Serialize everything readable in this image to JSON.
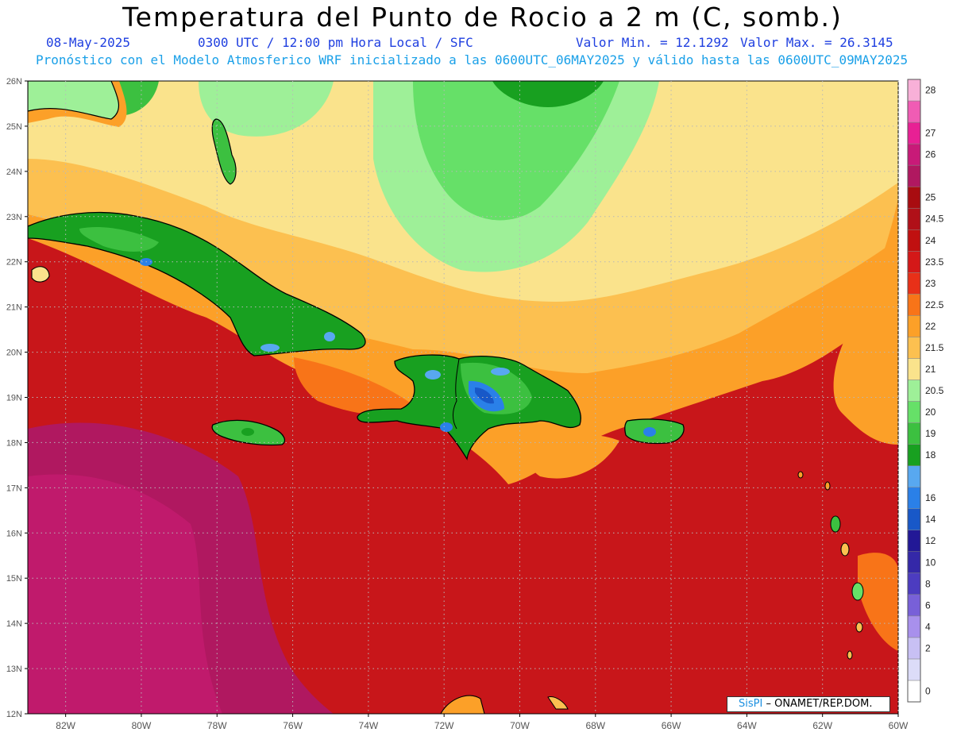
{
  "title": "Temperatura del Punto de Rocio a 2 m (C, somb.)",
  "subtitle": {
    "date": "08-May-2025",
    "time": "0300 UTC / 12:00 pm Hora Local / SFC",
    "min": "Valor Min. = 12.1292",
    "max": "Valor Max. = 26.3145"
  },
  "model_info": "Pronóstico con el Modelo Atmosferico WRF inicializado a las 0600UTC_06MAY2025 y válido hasta las  0600UTC_09MAY2025",
  "credit": {
    "brand": "SisPI",
    "text": "– ONAMET/REP.DOM."
  },
  "map": {
    "lon_range": [
      -83,
      -60
    ],
    "lat_range": [
      12,
      26
    ],
    "lon_ticks": [
      "82W",
      "80W",
      "78W",
      "76W",
      "74W",
      "72W",
      "70W",
      "68W",
      "66W",
      "64W",
      "62W",
      "60W"
    ],
    "lat_ticks": [
      "12N",
      "13N",
      "14N",
      "15N",
      "16N",
      "17N",
      "18N",
      "19N",
      "20N",
      "21N",
      "22N",
      "23N",
      "24N",
      "25N",
      "26N"
    ],
    "grid": true
  },
  "colorbar": {
    "levels": [
      {
        "label": "0",
        "color": "#ffffff"
      },
      {
        "label": "",
        "color": "#dcdcf8"
      },
      {
        "label": "2",
        "color": "#c8c0f4"
      },
      {
        "label": "4",
        "color": "#a890ec"
      },
      {
        "label": "6",
        "color": "#7860d8"
      },
      {
        "label": "8",
        "color": "#4c3cc0"
      },
      {
        "label": "10",
        "color": "#3428a8"
      },
      {
        "label": "12",
        "color": "#221896"
      },
      {
        "label": "14",
        "color": "#1858c8"
      },
      {
        "label": "16",
        "color": "#2a80e8"
      },
      {
        "label": "",
        "color": "#58a8f0"
      },
      {
        "label": "18",
        "color": "#18a020"
      },
      {
        "label": "19",
        "color": "#3cc040"
      },
      {
        "label": "20",
        "color": "#66e068"
      },
      {
        "label": "20.5",
        "color": "#9ef098"
      },
      {
        "label": "21",
        "color": "#fae38c"
      },
      {
        "label": "21.5",
        "color": "#fcc050"
      },
      {
        "label": "22",
        "color": "#fca028"
      },
      {
        "label": "22.5",
        "color": "#f87418"
      },
      {
        "label": "23",
        "color": "#e83018"
      },
      {
        "label": "23.5",
        "color": "#d41818"
      },
      {
        "label": "24",
        "color": "#c01010"
      },
      {
        "label": "24.5",
        "color": "#b01018"
      },
      {
        "label": "25",
        "color": "#a80c10"
      },
      {
        "label": "",
        "color": "#b01860"
      },
      {
        "label": "26",
        "color": "#c81a78"
      },
      {
        "label": "27",
        "color": "#e82094"
      },
      {
        "label": "",
        "color": "#f05cb4"
      },
      {
        "label": "28",
        "color": "#f8b0d8"
      }
    ]
  }
}
